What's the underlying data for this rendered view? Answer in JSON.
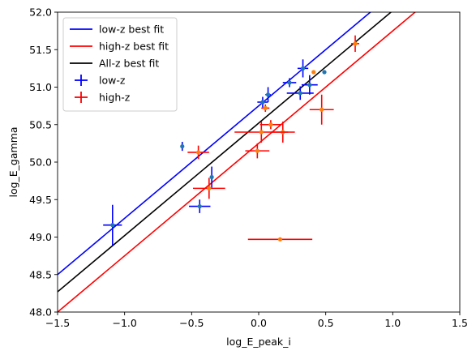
{
  "chart_data": {
    "type": "scatter",
    "xlabel": "log_E_peak_i",
    "ylabel": "log_E_gamma",
    "xlim": [
      -1.5,
      1.5
    ],
    "ylim": [
      48.0,
      52.0
    ],
    "xticks": [
      "−1.5",
      "−1.0",
      "−0.5",
      "0.0",
      "0.5",
      "1.0",
      "1.5"
    ],
    "yticks": [
      "48.0",
      "48.5",
      "49.0",
      "49.5",
      "50.0",
      "50.5",
      "51.0",
      "51.5",
      "52.0"
    ],
    "xtick_values": [
      -1.5,
      -1.0,
      -0.5,
      0.0,
      0.5,
      1.0,
      1.5
    ],
    "ytick_values": [
      48.0,
      48.5,
      49.0,
      49.5,
      50.0,
      50.5,
      51.0,
      51.5,
      52.0
    ],
    "legend_position": "upper-left",
    "fit_lines": [
      {
        "name": "low-z best fit",
        "color": "#0000ff",
        "slope": 1.5,
        "intercept": 50.75
      },
      {
        "name": "high-z best fit",
        "color": "#ff0000",
        "slope": 1.5,
        "intercept": 50.25
      },
      {
        "name": "All-z best fit",
        "color": "#000000",
        "slope": 1.5,
        "intercept": 50.52
      }
    ],
    "series": [
      {
        "name": "low-z",
        "bar_color": "#0000ff",
        "marker_color": "#1f77b4",
        "points": [
          {
            "x": -1.09,
            "y": 49.16,
            "xerr": 0.07,
            "yerr": 0.27
          },
          {
            "x": -0.44,
            "y": 49.41,
            "xerr": 0.08,
            "yerr": 0.09
          },
          {
            "x": -0.35,
            "y": 49.8,
            "xerr": 0.01,
            "yerr": 0.14
          },
          {
            "x": -0.57,
            "y": 50.21,
            "xerr": 0.0,
            "yerr": 0.06
          },
          {
            "x": 0.03,
            "y": 50.8,
            "xerr": 0.04,
            "yerr": 0.07
          },
          {
            "x": 0.07,
            "y": 50.9,
            "xerr": 0.02,
            "yerr": 0.1
          },
          {
            "x": 0.23,
            "y": 51.06,
            "xerr": 0.05,
            "yerr": 0.06
          },
          {
            "x": 0.31,
            "y": 50.92,
            "xerr": 0.1,
            "yerr": 0.09
          },
          {
            "x": 0.38,
            "y": 51.03,
            "xerr": 0.06,
            "yerr": 0.13
          },
          {
            "x": 0.33,
            "y": 51.25,
            "xerr": 0.04,
            "yerr": 0.12
          },
          {
            "x": 0.49,
            "y": 51.2,
            "xerr": 0.0,
            "yerr": 0.0
          }
        ]
      },
      {
        "name": "high-z",
        "bar_color": "#ff0000",
        "marker_color": "#ff7f0e",
        "points": [
          {
            "x": -0.45,
            "y": 50.13,
            "xerr": 0.08,
            "yerr": 0.09
          },
          {
            "x": -0.37,
            "y": 49.65,
            "xerr": 0.12,
            "yerr": 0.14
          },
          {
            "x": -0.01,
            "y": 50.15,
            "xerr": 0.09,
            "yerr": 0.1
          },
          {
            "x": 0.18,
            "y": 50.4,
            "xerr": 0.09,
            "yerr": 0.14
          },
          {
            "x": 0.02,
            "y": 50.4,
            "xerr": 0.2,
            "yerr": 0.14
          },
          {
            "x": 0.09,
            "y": 50.5,
            "xerr": 0.08,
            "yerr": 0.06
          },
          {
            "x": 0.05,
            "y": 50.72,
            "xerr": 0.03,
            "yerr": 0.05
          },
          {
            "x": 0.47,
            "y": 50.7,
            "xerr": 0.09,
            "yerr": 0.2
          },
          {
            "x": 0.16,
            "y": 48.97,
            "xerr": 0.24,
            "yerr": 0.0
          },
          {
            "x": 0.72,
            "y": 51.58,
            "xerr": 0.03,
            "yerr": 0.11
          },
          {
            "x": 0.41,
            "y": 51.2,
            "xerr": 0.0,
            "yerr": 0.0
          }
        ]
      }
    ],
    "legend": [
      {
        "label": "low-z best fit",
        "kind": "line",
        "color": "#0000ff"
      },
      {
        "label": "high-z best fit",
        "kind": "line",
        "color": "#ff0000"
      },
      {
        "label": "All-z best fit",
        "kind": "line",
        "color": "#000000"
      },
      {
        "label": "low-z",
        "kind": "errorbar",
        "color": "#0000ff"
      },
      {
        "label": "high-z",
        "kind": "errorbar",
        "color": "#ff0000"
      }
    ]
  }
}
